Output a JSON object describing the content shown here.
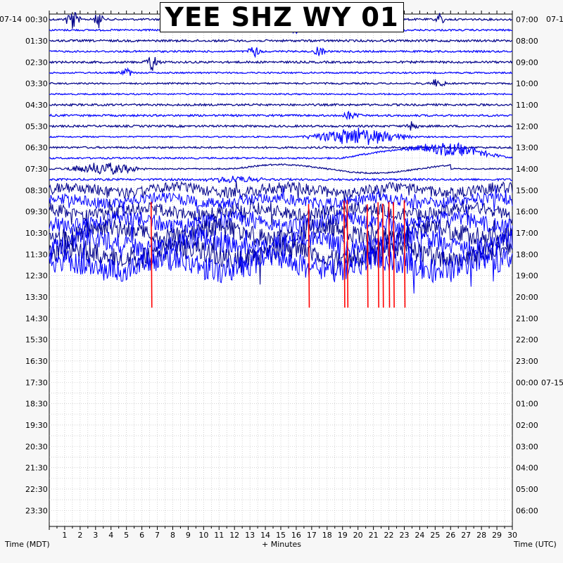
{
  "chart_data": {
    "type": "line",
    "title": "YEE SHZ WY 01",
    "xlabel": "+ Minutes",
    "left_axis_title": "Time (MDT)",
    "right_axis_title": "Time (UTC)",
    "left_date": "07-14",
    "right_date_top": "07-1",
    "right_date_mid": "07-15",
    "xlim": [
      0,
      30
    ],
    "x_ticks": [
      1,
      2,
      3,
      4,
      5,
      6,
      7,
      8,
      9,
      10,
      11,
      12,
      13,
      14,
      15,
      16,
      17,
      18,
      19,
      20,
      21,
      22,
      23,
      24,
      25,
      26,
      27,
      28,
      29,
      30
    ],
    "left_hour_labels": [
      "00:30",
      "01:30",
      "02:30",
      "03:30",
      "04:30",
      "05:30",
      "06:30",
      "07:30",
      "08:30",
      "09:30",
      "10:30",
      "11:30",
      "12:30",
      "13:30",
      "14:30",
      "15:30",
      "16:30",
      "17:30",
      "18:30",
      "19:30",
      "20:30",
      "21:30",
      "22:30",
      "23:30"
    ],
    "right_hour_labels": [
      "07:00",
      "08:00",
      "09:00",
      "10:00",
      "11:00",
      "12:00",
      "13:00",
      "14:00",
      "15:00",
      "16:00",
      "17:00",
      "18:00",
      "19:00",
      "20:00",
      "21:00",
      "22:00",
      "23:00",
      "00:00",
      "01:00",
      "02:00",
      "03:00",
      "04:00",
      "05:00",
      "06:00"
    ],
    "rows_per_hour": 2,
    "recorded_rows": 24,
    "trace_colors": [
      "#00008b",
      "#0000ff"
    ],
    "clip_color": "#ff0000",
    "grid": true,
    "events": [
      {
        "start_row": 0,
        "minute": 1.5,
        "amp": 18,
        "dur": 0.6
      },
      {
        "start_row": 0,
        "minute": 3.2,
        "amp": 12,
        "dur": 0.5
      },
      {
        "start_row": 0,
        "minute": 25.3,
        "amp": 10,
        "dur": 0.5
      },
      {
        "start_row": 1,
        "minute": 16.0,
        "amp": 6,
        "dur": 0.6
      },
      {
        "start_row": 3,
        "minute": 13.3,
        "amp": 10,
        "dur": 0.6
      },
      {
        "start_row": 3,
        "minute": 17.5,
        "amp": 7,
        "dur": 0.6
      },
      {
        "start_row": 4,
        "minute": 6.7,
        "amp": 14,
        "dur": 0.6
      },
      {
        "start_row": 5,
        "minute": 5.0,
        "amp": 6,
        "dur": 0.6
      },
      {
        "start_row": 6,
        "minute": 25.0,
        "amp": 6,
        "dur": 1.0
      },
      {
        "start_row": 9,
        "minute": 19.5,
        "amp": 6,
        "dur": 1.0
      },
      {
        "start_row": 10,
        "minute": 23.5,
        "amp": 10,
        "dur": 0.5
      },
      {
        "start_row": 11,
        "minute": 20.0,
        "amp": 14,
        "dur": 4.0
      },
      {
        "start_row": 13,
        "minute": 26.0,
        "amp": 10,
        "dur": 3.5
      },
      {
        "start_row": 14,
        "minute": 3.5,
        "amp": 10,
        "dur": 3.0
      },
      {
        "start_row": 15,
        "minute": 12.0,
        "amp": 6,
        "dur": 2.5
      },
      {
        "start_row": 17,
        "minute": 24.0,
        "amp": 8,
        "dur": 3.0
      }
    ],
    "clipped_minutes": [
      6.6,
      16.8,
      19.1,
      19.3,
      20.6,
      21.3,
      21.6,
      22.0,
      22.3,
      23.0
    ]
  }
}
